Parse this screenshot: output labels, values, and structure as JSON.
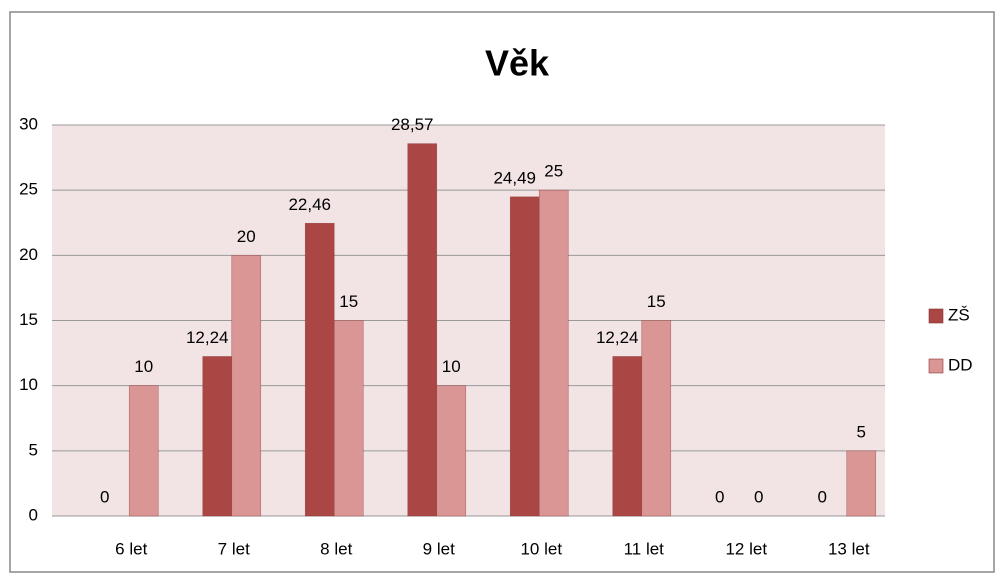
{
  "chart_data": {
    "type": "bar",
    "title": "Věk",
    "categories": [
      "6 let",
      "7 let",
      "8 let",
      "9 let",
      "10 let",
      "11 let",
      "12 let",
      "13 let"
    ],
    "series": [
      {
        "name": "ZŠ",
        "color": "#aa4643",
        "values": [
          0,
          12.24,
          22.46,
          28.57,
          24.49,
          12.24,
          0,
          0
        ],
        "value_labels": [
          "0",
          "12,24",
          "22,46",
          "28,57",
          "24,49",
          "12,24",
          "0",
          "0"
        ]
      },
      {
        "name": "DD",
        "color": "#d99694",
        "values": [
          10,
          20,
          15,
          10,
          25,
          15,
          0,
          5
        ]
      }
    ],
    "ylim": [
      0,
      30
    ],
    "yticks": [
      0,
      5,
      10,
      15,
      20,
      25,
      30
    ],
    "grid": true,
    "legend": "right"
  }
}
